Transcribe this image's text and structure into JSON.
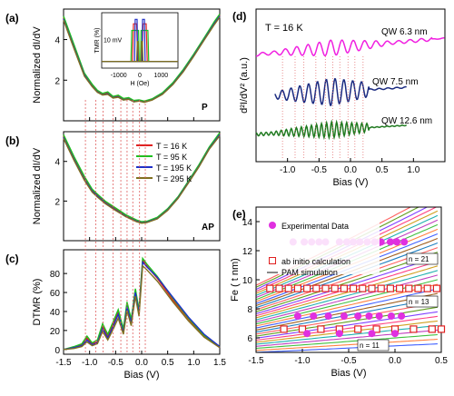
{
  "chart_data": [
    {
      "id": "a",
      "type": "line",
      "panel_label": "(a)",
      "ylabel": "Normalized dI/dV",
      "corner_label": "P",
      "xlim": [
        -1.5,
        1.5
      ],
      "ylim": [
        0,
        5.5
      ],
      "yticks": [
        2,
        4
      ],
      "series": [
        {
          "name": "T = 16 K",
          "color": "#e02020",
          "x": [
            -1.5,
            -1.3,
            -1.1,
            -0.95,
            -0.85,
            -0.75,
            -0.65,
            -0.55,
            -0.45,
            -0.35,
            -0.25,
            -0.15,
            -0.05,
            0.05,
            0.2,
            0.4,
            0.6,
            0.8,
            1.0,
            1.2,
            1.4,
            1.5
          ],
          "y": [
            5.1,
            3.7,
            2.3,
            1.75,
            1.45,
            1.3,
            1.38,
            1.15,
            1.22,
            1.05,
            1.1,
            0.95,
            1.0,
            0.93,
            1.05,
            1.35,
            1.85,
            2.5,
            3.25,
            4.05,
            4.85,
            5.2
          ]
        },
        {
          "name": "T = 95 K",
          "color": "#20c020",
          "x": [
            -1.5,
            -1.3,
            -1.1,
            -0.95,
            -0.85,
            -0.75,
            -0.65,
            -0.55,
            -0.45,
            -0.35,
            -0.25,
            -0.15,
            -0.05,
            0.05,
            0.2,
            0.4,
            0.6,
            0.8,
            1.0,
            1.2,
            1.4,
            1.5
          ],
          "y": [
            5.15,
            3.75,
            2.35,
            1.8,
            1.5,
            1.35,
            1.42,
            1.2,
            1.26,
            1.1,
            1.14,
            1.0,
            1.03,
            0.97,
            1.08,
            1.38,
            1.88,
            2.53,
            3.28,
            4.08,
            4.9,
            5.25
          ]
        },
        {
          "name": "T = 195 K",
          "color": "#2030c8",
          "x": [
            -1.5,
            -1.3,
            -1.1,
            -0.95,
            -0.85,
            -0.75,
            -0.65,
            -0.55,
            -0.45,
            -0.35,
            -0.25,
            -0.15,
            -0.05,
            0.05,
            0.2,
            0.4,
            0.6,
            0.8,
            1.0,
            1.2,
            1.4,
            1.5
          ],
          "y": [
            5.0,
            3.6,
            2.25,
            1.7,
            1.42,
            1.28,
            1.33,
            1.13,
            1.18,
            1.03,
            1.07,
            0.94,
            0.98,
            0.92,
            1.03,
            1.32,
            1.8,
            2.45,
            3.2,
            4.0,
            4.8,
            5.15
          ]
        },
        {
          "name": "T = 295 K",
          "color": "#807020",
          "x": [
            -1.5,
            -1.3,
            -1.1,
            -0.95,
            -0.85,
            -0.75,
            -0.65,
            -0.55,
            -0.45,
            -0.35,
            -0.25,
            -0.15,
            -0.05,
            0.05,
            0.2,
            0.4,
            0.6,
            0.8,
            1.0,
            1.2,
            1.4,
            1.5
          ],
          "y": [
            4.95,
            3.55,
            2.2,
            1.68,
            1.4,
            1.27,
            1.3,
            1.12,
            1.16,
            1.02,
            1.06,
            0.93,
            0.97,
            0.91,
            1.02,
            1.3,
            1.78,
            2.42,
            3.17,
            3.97,
            4.75,
            5.1
          ]
        }
      ],
      "inset": {
        "xlabel": "H (Oe)",
        "ylabel": "TMR (%)",
        "xticks": [
          -1000,
          0,
          1000
        ],
        "xlim": [
          -1800,
          1800
        ],
        "ylim": [
          0,
          25
        ],
        "label": "10 mV",
        "series": [
          {
            "color": "#e02020",
            "x": [
              -1800,
              -350,
              -300,
              -150,
              -100,
              1800
            ],
            "y": [
              3,
              3,
              20,
              20,
              3,
              3
            ]
          },
          {
            "color": "#20c020",
            "x": [
              -1800,
              -420,
              -380,
              -60,
              -30,
              1800
            ],
            "y": [
              3,
              3,
              17,
              17,
              3,
              3
            ]
          },
          {
            "color": "#2030c8",
            "x": [
              -1800,
              -250,
              -220,
              -130,
              -100,
              1800
            ],
            "y": [
              3,
              3,
              22,
              22,
              3,
              3
            ]
          },
          {
            "color": "#807020",
            "x": [
              -1800,
              -150,
              -120,
              -80,
              -60,
              1800
            ],
            "y": [
              3,
              3,
              12,
              12,
              3,
              3
            ]
          }
        ]
      }
    },
    {
      "id": "b",
      "type": "line",
      "panel_label": "(b)",
      "ylabel": "Normalized dI/dV",
      "corner_label": "AP",
      "xlim": [
        -1.5,
        1.5
      ],
      "ylim": [
        0,
        5.5
      ],
      "yticks": [
        2,
        4
      ],
      "series": [
        {
          "name": "T = 16 K",
          "color": "#e02020",
          "x": [
            -1.5,
            -1.3,
            -1.1,
            -0.95,
            -0.85,
            -0.7,
            -0.5,
            -0.3,
            -0.1,
            0.0,
            0.1,
            0.3,
            0.5,
            0.7,
            0.9,
            1.1,
            1.3,
            1.5
          ],
          "y": [
            5.3,
            4.2,
            3.2,
            2.55,
            2.3,
            1.95,
            1.6,
            1.25,
            1.0,
            0.92,
            0.95,
            1.15,
            1.6,
            2.2,
            3.0,
            3.8,
            4.7,
            5.4
          ]
        },
        {
          "name": "T = 95 K",
          "color": "#20c020",
          "x": [
            -1.5,
            -1.3,
            -1.1,
            -0.95,
            -0.85,
            -0.7,
            -0.5,
            -0.3,
            -0.1,
            0.0,
            0.1,
            0.3,
            0.5,
            0.7,
            0.9,
            1.1,
            1.3,
            1.5
          ],
          "y": [
            5.35,
            4.25,
            3.25,
            2.6,
            2.35,
            2.0,
            1.65,
            1.3,
            1.05,
            0.96,
            0.98,
            1.18,
            1.62,
            2.22,
            3.02,
            3.83,
            4.73,
            5.45
          ]
        },
        {
          "name": "T = 195 K",
          "color": "#2030c8",
          "x": [
            -1.5,
            -1.3,
            -1.1,
            -0.95,
            -0.85,
            -0.7,
            -0.5,
            -0.3,
            -0.1,
            0.0,
            0.1,
            0.3,
            0.5,
            0.7,
            0.9,
            1.1,
            1.3,
            1.5
          ],
          "y": [
            5.2,
            4.1,
            3.1,
            2.5,
            2.25,
            1.9,
            1.55,
            1.22,
            0.98,
            0.9,
            0.93,
            1.12,
            1.56,
            2.16,
            2.95,
            3.75,
            4.65,
            5.35
          ]
        },
        {
          "name": "T = 295 K",
          "color": "#807020",
          "x": [
            -1.5,
            -1.3,
            -1.1,
            -0.95,
            -0.85,
            -0.7,
            -0.5,
            -0.3,
            -0.1,
            0.0,
            0.1,
            0.3,
            0.5,
            0.7,
            0.9,
            1.1,
            1.3,
            1.5
          ],
          "y": [
            5.15,
            4.05,
            3.05,
            2.45,
            2.2,
            1.87,
            1.52,
            1.2,
            0.96,
            0.88,
            0.91,
            1.1,
            1.53,
            2.13,
            2.92,
            3.72,
            4.62,
            5.3
          ]
        }
      ],
      "legend": [
        "T = 16 K",
        "T = 95 K",
        "T = 195 K",
        "T = 295 K"
      ]
    },
    {
      "id": "c",
      "type": "line",
      "panel_label": "(c)",
      "ylabel": "DTMR (%)",
      "xlabel": "Bias (V)",
      "xlim": [
        -1.5,
        1.5
      ],
      "ylim": [
        -5,
        105
      ],
      "yticks": [
        0,
        20,
        40,
        60,
        80
      ],
      "xticks": [
        -1.5,
        -1.0,
        -0.5,
        0.0,
        0.5,
        1.0,
        1.5
      ],
      "series": [
        {
          "name": "T = 16 K",
          "color": "#e02020",
          "x": [
            -1.5,
            -1.3,
            -1.15,
            -1.05,
            -0.95,
            -0.85,
            -0.75,
            -0.65,
            -0.55,
            -0.45,
            -0.35,
            -0.28,
            -0.2,
            -0.12,
            -0.05,
            0.02,
            0.1,
            0.3,
            0.6,
            0.9,
            1.2,
            1.5
          ],
          "y": [
            0,
            2,
            5,
            12,
            6,
            8,
            24,
            14,
            26,
            40,
            20,
            48,
            30,
            62,
            40,
            94,
            88,
            75,
            52,
            32,
            14,
            2
          ]
        },
        {
          "name": "T = 95 K",
          "color": "#20c020",
          "x": [
            -1.5,
            -1.3,
            -1.15,
            -1.05,
            -0.95,
            -0.85,
            -0.75,
            -0.65,
            -0.55,
            -0.45,
            -0.35,
            -0.28,
            -0.2,
            -0.12,
            -0.05,
            0.02,
            0.1,
            0.3,
            0.6,
            0.9,
            1.2,
            1.5
          ],
          "y": [
            0,
            3,
            6,
            14,
            7,
            10,
            27,
            16,
            29,
            42,
            22,
            50,
            32,
            64,
            42,
            96,
            90,
            77,
            54,
            33,
            15,
            3
          ]
        },
        {
          "name": "T = 195 K",
          "color": "#2030c8",
          "x": [
            -1.5,
            -1.3,
            -1.15,
            -1.05,
            -0.95,
            -0.85,
            -0.75,
            -0.65,
            -0.55,
            -0.45,
            -0.35,
            -0.28,
            -0.2,
            -0.12,
            -0.05,
            0.02,
            0.1,
            0.3,
            0.6,
            0.9,
            1.2,
            1.5
          ],
          "y": [
            0,
            2,
            4,
            10,
            5,
            7,
            22,
            12,
            24,
            37,
            18,
            45,
            28,
            60,
            38,
            92,
            87,
            76,
            55,
            34,
            16,
            3
          ]
        },
        {
          "name": "T = 295 K",
          "color": "#807020",
          "x": [
            -1.5,
            -1.3,
            -1.15,
            -1.05,
            -0.95,
            -0.85,
            -0.75,
            -0.65,
            -0.55,
            -0.45,
            -0.35,
            -0.28,
            -0.2,
            -0.12,
            -0.05,
            0.02,
            0.1,
            0.3,
            0.6,
            0.9,
            1.2,
            1.5
          ],
          "y": [
            0,
            1,
            3,
            8,
            4,
            6,
            19,
            10,
            21,
            33,
            16,
            41,
            25,
            56,
            35,
            88,
            84,
            72,
            50,
            30,
            13,
            2
          ]
        }
      ],
      "guide_lines_x": [
        -1.08,
        -0.88,
        -0.74,
        -0.55,
        -0.4,
        -0.28,
        -0.17,
        -0.04,
        0.07
      ]
    },
    {
      "id": "d",
      "type": "line",
      "panel_label": "(d)",
      "title": "T = 16 K",
      "ylabel": "d²I/dV² (a.u.)",
      "xlabel": "Bias (V)",
      "xlim": [
        -1.5,
        1.5
      ],
      "xticks": [
        -1.0,
        -0.5,
        0.0,
        0.5,
        1.0
      ],
      "series": [
        {
          "name": "QW 6.3 nm",
          "color": "#f020e0",
          "offset": 3,
          "amplitude": 0.22,
          "period": 0.18,
          "x_start": -1.5,
          "x_end": 1.3
        },
        {
          "name": "QW 7.5 nm",
          "color": "#1a2a80",
          "offset": 2,
          "amplitude": 0.38,
          "period": 0.14,
          "x_start": -1.2,
          "x_end": 0.3
        },
        {
          "name": "QW 12.6 nm",
          "color": "#207a20",
          "offset": 1,
          "amplitude": 0.22,
          "period": 0.08,
          "x_start": -1.5,
          "x_end": 0.3
        }
      ]
    },
    {
      "id": "e",
      "type": "scatter",
      "panel_label": "(e)",
      "ylabel": "Fe ( t nm)",
      "xlabel": "Bias (V)",
      "xlim": [
        -1.5,
        0.5
      ],
      "ylim": [
        5,
        15
      ],
      "yticks": [
        6,
        8,
        10,
        12,
        14
      ],
      "xticks": [
        -1.5,
        -1.0,
        -0.5,
        0.0,
        0.5
      ],
      "legend": [
        "Experimental Data",
        "ab initio calculation",
        "PAM simulation"
      ],
      "annotations": [
        "n = 21",
        "n = 13",
        "n = 11"
      ],
      "series": [
        {
          "name": "Experimental Data",
          "marker": "circle",
          "color": "#e030e0",
          "x": [
            -1.1,
            -0.98,
            -0.9,
            -0.82,
            -0.75,
            -0.6,
            -0.52,
            -0.45,
            -0.38,
            -0.3,
            -0.22,
            -0.15,
            -0.05,
            0.02,
            0.1,
            -1.05,
            -0.88,
            -0.72,
            -0.55,
            -0.4,
            -0.28,
            -0.17,
            -0.04,
            0.07,
            -0.95,
            -0.6,
            -0.25,
            0.0
          ],
          "y": [
            12.6,
            12.6,
            12.6,
            12.6,
            12.6,
            12.6,
            12.6,
            12.6,
            12.6,
            12.6,
            12.6,
            12.6,
            12.6,
            12.6,
            12.6,
            7.5,
            7.5,
            7.5,
            7.5,
            7.5,
            7.5,
            7.5,
            7.5,
            7.5,
            6.3,
            6.3,
            6.3,
            6.3
          ]
        },
        {
          "name": "ab initio calculation",
          "marker": "square-open",
          "color": "#e02020",
          "x": [
            -1.35,
            -1.25,
            -1.15,
            -1.05,
            -0.95,
            -0.85,
            -0.75,
            -0.65,
            -0.55,
            -0.45,
            -0.35,
            -0.25,
            -0.15,
            -0.05,
            0.05,
            0.15,
            0.25,
            0.35,
            0.45,
            -1.2,
            -1.0,
            -0.8,
            -0.6,
            -0.4,
            -0.2,
            0.0,
            0.2,
            0.4,
            0.5
          ],
          "y": [
            9.4,
            9.4,
            9.4,
            9.4,
            9.4,
            9.4,
            9.4,
            9.4,
            9.4,
            9.4,
            9.4,
            9.4,
            9.4,
            9.4,
            9.4,
            9.4,
            9.4,
            9.4,
            9.4,
            6.6,
            6.6,
            6.6,
            6.6,
            6.6,
            6.6,
            6.6,
            6.6,
            6.6,
            6.6
          ]
        }
      ]
    }
  ]
}
